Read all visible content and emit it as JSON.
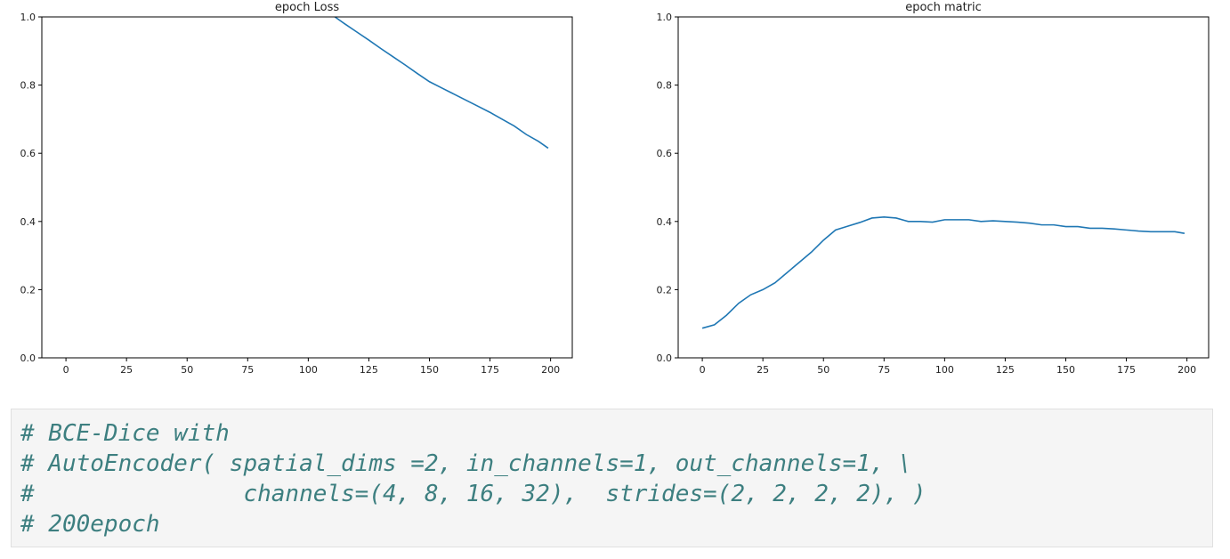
{
  "chart_data": [
    {
      "type": "line",
      "title": "epoch Loss",
      "x": [
        111,
        115,
        120,
        125,
        130,
        135,
        140,
        145,
        150,
        155,
        160,
        165,
        170,
        175,
        180,
        185,
        190,
        195,
        199
      ],
      "series": [
        {
          "color": "#1f77b4",
          "values": [
            1.0,
            0.98,
            0.956,
            0.932,
            0.907,
            0.883,
            0.859,
            0.834,
            0.81,
            0.792,
            0.774,
            0.756,
            0.738,
            0.72,
            0.7,
            0.68,
            0.655,
            0.635,
            0.615
          ]
        }
      ],
      "xlim": [
        -9.95,
        208.95
      ],
      "xticks": [
        0,
        25,
        50,
        75,
        100,
        125,
        150,
        175,
        200
      ],
      "ylim": [
        0,
        1
      ],
      "yticks": [
        {
          "value": 0,
          "label": "0.0"
        },
        0.2,
        0.4,
        0.6,
        0.8,
        {
          "value": 1,
          "label": "1.0"
        }
      ],
      "grid": false
    },
    {
      "type": "line",
      "title": "epoch matric",
      "x": [
        0,
        5,
        10,
        15,
        20,
        25,
        30,
        35,
        40,
        45,
        50,
        55,
        60,
        65,
        70,
        75,
        80,
        85,
        90,
        95,
        100,
        105,
        110,
        115,
        120,
        125,
        130,
        135,
        140,
        145,
        150,
        155,
        160,
        165,
        170,
        175,
        180,
        185,
        190,
        195,
        199
      ],
      "series": [
        {
          "color": "#1f77b4",
          "values": [
            0.087,
            0.097,
            0.125,
            0.16,
            0.185,
            0.2,
            0.22,
            0.25,
            0.28,
            0.31,
            0.345,
            0.375,
            0.386,
            0.397,
            0.41,
            0.413,
            0.41,
            0.4,
            0.4,
            0.398,
            0.405,
            0.405,
            0.405,
            0.4,
            0.402,
            0.4,
            0.398,
            0.395,
            0.39,
            0.39,
            0.385,
            0.385,
            0.38,
            0.38,
            0.378,
            0.375,
            0.372,
            0.37,
            0.37,
            0.37,
            0.365
          ]
        }
      ],
      "xlim": [
        -9.95,
        208.95
      ],
      "xticks": [
        0,
        25,
        50,
        75,
        100,
        125,
        150,
        175,
        200
      ],
      "ylim": [
        0,
        1
      ],
      "yticks": [
        {
          "value": 0,
          "label": "0.0"
        },
        0.2,
        0.4,
        0.6,
        0.8,
        {
          "value": 1,
          "label": "1.0"
        }
      ],
      "grid": false
    }
  ],
  "code": {
    "lines": [
      "# BCE-Dice with",
      "# AutoEncoder( spatial_dims =2, in_channels=1, out_channels=1, \\",
      "#               channels=(4, 8, 16, 32),  strides=(2, 2, 2, 2), )",
      "# 200epoch"
    ]
  }
}
